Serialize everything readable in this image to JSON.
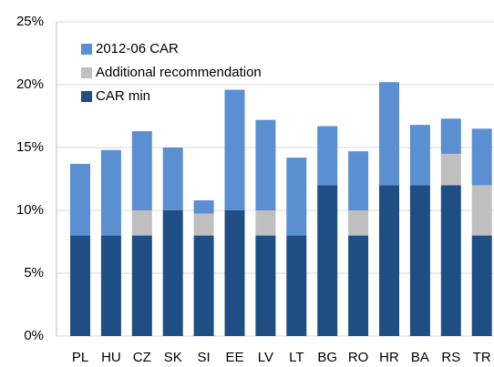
{
  "chart_data": {
    "type": "stacked_bar",
    "categories": [
      "PL",
      "HU",
      "CZ",
      "SK",
      "SI",
      "EE",
      "LV",
      "LT",
      "BG",
      "RO",
      "HR",
      "BA",
      "RS",
      "TR"
    ],
    "series": [
      {
        "name": "CAR min",
        "color": "#1f4e85",
        "values": [
          8,
          8,
          8,
          10,
          8,
          10,
          8,
          8,
          12,
          8,
          12,
          12,
          12,
          8
        ]
      },
      {
        "name": "Additional recommendation",
        "color": "#bfbfbf",
        "values": [
          0,
          0,
          2,
          0,
          1.75,
          0,
          2,
          0,
          0,
          2,
          0,
          0,
          2.5,
          4
        ]
      },
      {
        "name": "2012-06 CAR",
        "color": "#5a8fd2",
        "values": [
          5.7,
          6.8,
          6.3,
          5,
          1.05,
          9.6,
          7.2,
          6.2,
          4.7,
          4.7,
          8.2,
          4.8,
          2.8,
          4.5
        ]
      }
    ],
    "ylim": [
      0,
      25
    ],
    "yticks": [
      {
        "value": 0,
        "label": "0%"
      },
      {
        "value": 5,
        "label": "5%"
      },
      {
        "value": 10,
        "label": "10%"
      },
      {
        "value": 15,
        "label": "15%"
      },
      {
        "value": 20,
        "label": "20%"
      },
      {
        "value": 25,
        "label": "25%"
      }
    ],
    "grid": true,
    "legend": "top-left"
  }
}
